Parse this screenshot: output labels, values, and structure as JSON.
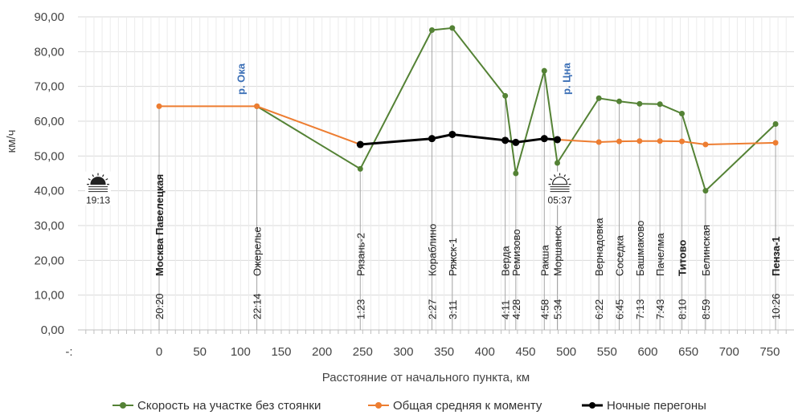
{
  "chart_data": {
    "type": "line",
    "ylabel": "км/ч",
    "xlabel": "Расстояние от начального пункта, км",
    "ylim": [
      0,
      90
    ],
    "yticks": [
      "0,00",
      "10,00",
      "20,00",
      "30,00",
      "40,00",
      "50,00",
      "60,00",
      "70,00",
      "80,00",
      "90,00"
    ],
    "xlim": [
      -100,
      800
    ],
    "xticks": [
      "0",
      "50",
      "100",
      "150",
      "200",
      "250",
      "300",
      "350",
      "400",
      "450",
      "500",
      "550",
      "600",
      "650",
      "700",
      "750"
    ],
    "x_left_label": "-:",
    "series": [
      {
        "name": "Скорость на участке без стоянки",
        "color": "#548235",
        "points": [
          [
            120,
            64.3
          ],
          [
            247,
            46.3
          ],
          [
            335,
            86.2
          ],
          [
            360,
            86.8
          ],
          [
            425,
            67.3
          ],
          [
            438,
            45
          ],
          [
            473,
            74.5
          ],
          [
            489,
            48
          ],
          [
            540,
            66.6
          ],
          [
            565,
            65.7
          ],
          [
            590,
            65
          ],
          [
            615,
            64.9
          ],
          [
            642,
            62.2
          ],
          [
            671,
            40
          ],
          [
            757,
            59.2
          ]
        ]
      },
      {
        "name": "Общая средняя к моменту",
        "color": "#ed7d31",
        "points": [
          [
            0,
            64.3
          ],
          [
            120,
            64.3
          ],
          [
            247,
            53.3
          ],
          [
            335,
            55
          ],
          [
            360,
            56.2
          ],
          [
            425,
            54.5
          ],
          [
            438,
            53.9
          ],
          [
            473,
            55
          ],
          [
            489,
            54.7
          ],
          [
            540,
            54
          ],
          [
            565,
            54.2
          ],
          [
            590,
            54.3
          ],
          [
            615,
            54.3
          ],
          [
            642,
            54.2
          ],
          [
            671,
            53.3
          ],
          [
            757,
            53.8
          ]
        ]
      },
      {
        "name": "Ночные перегоны",
        "color": "#000000",
        "points": [
          [
            247,
            53.3
          ],
          [
            335,
            55
          ],
          [
            360,
            56.2
          ],
          [
            425,
            54.5
          ],
          [
            438,
            53.9
          ],
          [
            473,
            55
          ],
          [
            489,
            54.7
          ]
        ]
      }
    ],
    "stations": [
      {
        "x": 0,
        "name": "Москва Павелецкая",
        "bold": true,
        "time": "20:20"
      },
      {
        "x": 120,
        "name": "Ожерелье",
        "bold": false,
        "time": "22:14"
      },
      {
        "x": 247,
        "name": "Рязань-2",
        "bold": false,
        "time": "1:23"
      },
      {
        "x": 335,
        "name": "Кораблино",
        "bold": false,
        "time": "2:27"
      },
      {
        "x": 360,
        "name": "Ряжск-1",
        "bold": false,
        "time": "3:11"
      },
      {
        "x": 425,
        "name": "Верда",
        "bold": false,
        "time": "4:11"
      },
      {
        "x": 438,
        "name": "Ремизово",
        "bold": false,
        "time": "4:28"
      },
      {
        "x": 473,
        "name": "Ракша",
        "bold": false,
        "time": "4:58"
      },
      {
        "x": 489,
        "name": "Моршанск",
        "bold": false,
        "time": "5:34"
      },
      {
        "x": 540,
        "name": "Вернадовка",
        "bold": false,
        "time": "6:22"
      },
      {
        "x": 565,
        "name": "Соседка",
        "bold": false,
        "time": "6:45"
      },
      {
        "x": 590,
        "name": "Башмаково",
        "bold": false,
        "time": "7:13"
      },
      {
        "x": 615,
        "name": "Пачелма",
        "bold": false,
        "time": "7:43"
      },
      {
        "x": 642,
        "name": "Титово",
        "bold": true,
        "time": "8:10"
      },
      {
        "x": 671,
        "name": "Белинская",
        "bold": false,
        "time": "8:59"
      },
      {
        "x": 757,
        "name": "Пенза-1",
        "bold": true,
        "time": "10:26"
      }
    ],
    "rivers": [
      {
        "x": 100,
        "label": "р. Ока"
      },
      {
        "x": 500,
        "label": "р. Цна"
      }
    ],
    "sun_events": [
      {
        "type": "sunset",
        "time": "19:13",
        "x": -75,
        "y": 40
      },
      {
        "type": "sunrise",
        "time": "05:37",
        "x": 492,
        "y": 40
      }
    ]
  }
}
